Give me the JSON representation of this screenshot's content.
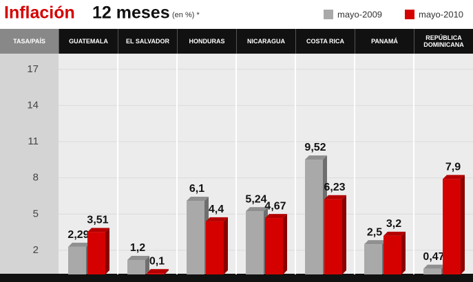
{
  "chart_data": {
    "type": "bar",
    "title": "Inflación",
    "title_suffix": "12 meses",
    "subtitle": "(en %) *",
    "corner_label": "TASA/PAÍS",
    "categories": [
      "GUATEMALA",
      "EL SALVADOR",
      "HONDURAS",
      "NICARAGUA",
      "COSTA RICA",
      "PANAMÁ",
      "REPÚBLICA DOMINICANA"
    ],
    "series": [
      {
        "name": "mayo-2009",
        "color": "#a9a9a9",
        "values": [
          2.29,
          1.2,
          6.1,
          5.24,
          9.52,
          2.5,
          0.47
        ],
        "value_labels": [
          "2,29",
          "1,2",
          "6,1",
          "5,24",
          "9,52",
          "2,5",
          "0,47"
        ]
      },
      {
        "name": "mayo-2010",
        "color": "#d50000",
        "values": [
          3.51,
          0.1,
          4.4,
          4.67,
          6.23,
          3.2,
          7.9
        ],
        "value_labels": [
          "3,51",
          "0,1",
          "4,4",
          "4,67",
          "6,23",
          "3,2",
          "7,9"
        ]
      }
    ],
    "ylim": [
      0,
      18.3
    ],
    "yticks": [
      2,
      5,
      8,
      11,
      14,
      17
    ],
    "grid": true,
    "legend": "top-right"
  }
}
